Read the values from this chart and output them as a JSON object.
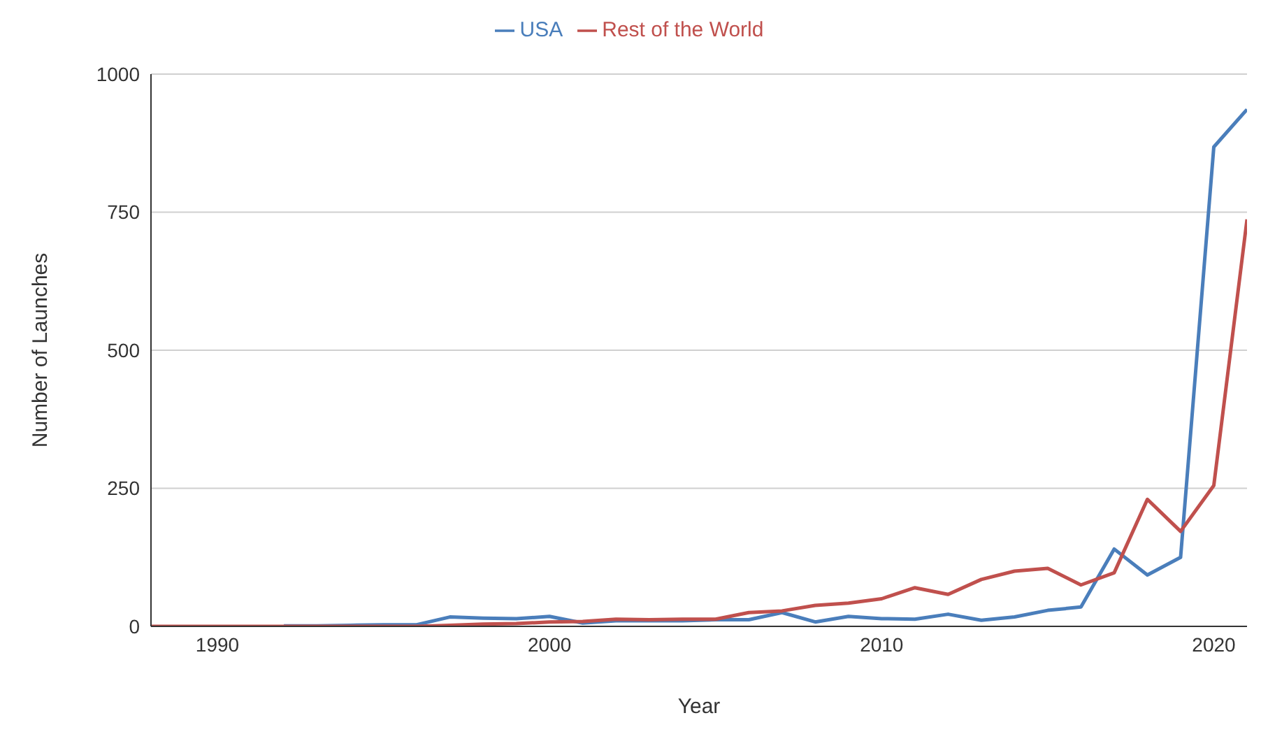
{
  "chart_data": {
    "type": "line",
    "xlabel": "Year",
    "ylabel": "Number of Launches",
    "x": [
      1988,
      1989,
      1990,
      1991,
      1992,
      1993,
      1994,
      1995,
      1996,
      1997,
      1998,
      1999,
      2000,
      2001,
      2002,
      2003,
      2004,
      2005,
      2006,
      2007,
      2008,
      2009,
      2010,
      2011,
      2012,
      2013,
      2014,
      2015,
      2016,
      2017,
      2018,
      2019,
      2020,
      2021
    ],
    "series": [
      {
        "name": "USA",
        "color": "#4a7ebb",
        "values": [
          null,
          null,
          null,
          null,
          1,
          1,
          2,
          3,
          3,
          17,
          15,
          14,
          18,
          6,
          10,
          10,
          10,
          12,
          12,
          25,
          8,
          18,
          14,
          13,
          22,
          11,
          17,
          29,
          35,
          140,
          93,
          125,
          868,
          936
        ]
      },
      {
        "name": "Rest of the World",
        "color": "#c0504d",
        "values": [
          0,
          0,
          0,
          0,
          0,
          0,
          0,
          0,
          0,
          2,
          4,
          5,
          8,
          9,
          13,
          12,
          13,
          13,
          25,
          28,
          38,
          42,
          50,
          70,
          58,
          85,
          100,
          105,
          75,
          97,
          230,
          172,
          255,
          737
        ]
      }
    ],
    "xlim": [
      1988,
      2021
    ],
    "xticks": [
      1990,
      2000,
      2010,
      2020
    ],
    "ylim": [
      0,
      1000
    ],
    "yticks": [
      0,
      250,
      500,
      750,
      1000
    ],
    "grid": "y",
    "legend": "top",
    "marker": "none",
    "line_style": "solid"
  }
}
